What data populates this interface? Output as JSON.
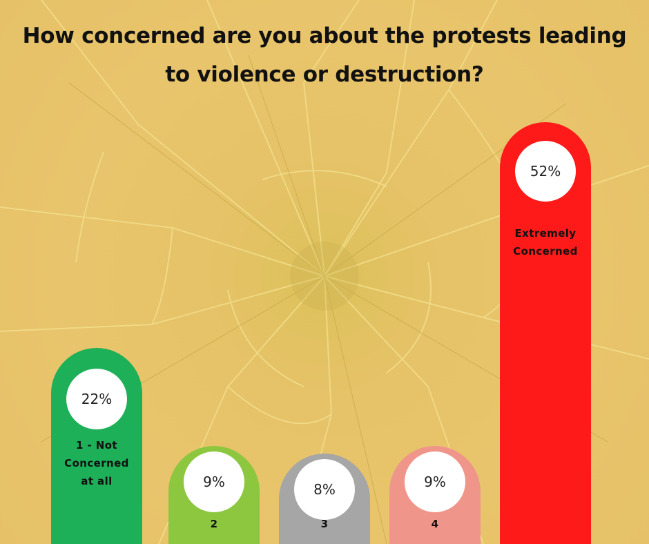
{
  "chart_data": {
    "type": "bar",
    "title": "How concerned are you about the protests leading to violence or destruction?",
    "categories": [
      "1 - Not Concerned at all",
      "2",
      "3",
      "4",
      "Extremely Concerned"
    ],
    "values": [
      22,
      9,
      8,
      9,
      52
    ],
    "value_labels": [
      "22%",
      "9%",
      "8%",
      "9%",
      "52%"
    ],
    "colors": [
      "#1db058",
      "#8dc63f",
      "#a6a6a6",
      "#f0958a",
      "#ff1a1a"
    ],
    "unit": "%"
  }
}
